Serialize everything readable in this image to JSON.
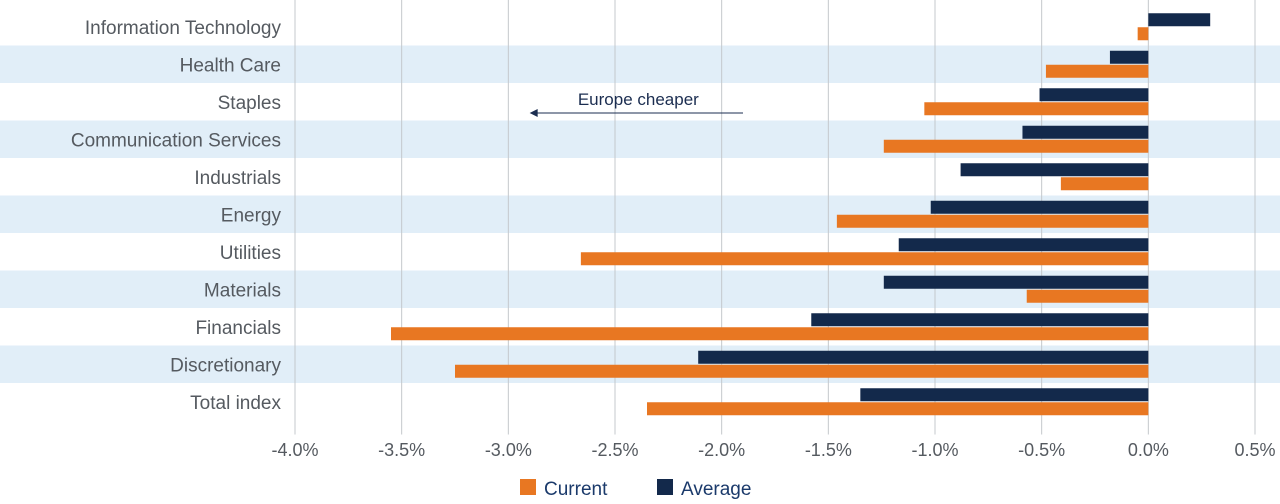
{
  "chart_data": {
    "type": "bar",
    "orientation": "horizontal",
    "categories": [
      "Information Technology",
      "Health Care",
      "Staples",
      "Communication Services",
      "Industrials",
      "Energy",
      "Utilities",
      "Materials",
      "Financials",
      "Discretionary",
      "Total index"
    ],
    "series": [
      {
        "name": "Current",
        "color": "#e87722",
        "values": [
          -0.05,
          -0.48,
          -1.05,
          -1.24,
          -0.41,
          -1.46,
          -2.66,
          -0.57,
          -3.55,
          -3.25,
          -2.35
        ]
      },
      {
        "name": "Average",
        "color": "#13294b",
        "values": [
          0.29,
          -0.18,
          -0.51,
          -0.59,
          -0.88,
          -1.02,
          -1.17,
          -1.24,
          -1.58,
          -2.11,
          -1.35
        ]
      }
    ],
    "xlim": [
      -4.0,
      0.5
    ],
    "x_ticks": [
      "-4.0%",
      "-3.5%",
      "-3.0%",
      "-2.5%",
      "-2.0%",
      "-1.5%",
      "-1.0%",
      "-0.5%",
      "0.0%",
      "0.5%"
    ],
    "x_tick_values": [
      -4.0,
      -3.5,
      -3.0,
      -2.5,
      -2.0,
      -1.5,
      -1.0,
      -0.5,
      0.0,
      0.5
    ],
    "grid": "vertical",
    "band_color": "#e1eef8",
    "legend": "bottom-center",
    "annotation": {
      "text": "Europe cheaper",
      "arrow_from": -1.9,
      "arrow_to": -2.9
    },
    "title": "",
    "xlabel": "",
    "ylabel": ""
  }
}
